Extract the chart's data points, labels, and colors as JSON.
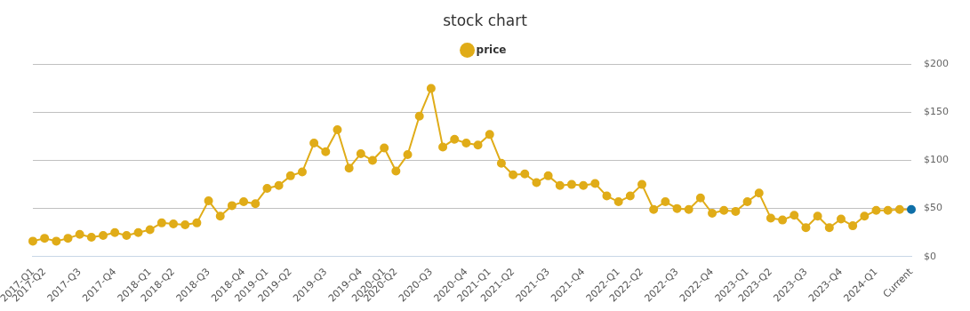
{
  "chart_data": {
    "type": "line",
    "title": "stock chart",
    "categories": [
      "2017-Q1",
      "2017-Q2",
      null,
      null,
      "2017-Q3",
      null,
      null,
      "2017-Q4",
      null,
      null,
      "2018-Q1",
      null,
      "2018-Q2",
      null,
      null,
      "2018-Q3",
      null,
      null,
      "2018-Q4",
      null,
      "2019-Q1",
      null,
      "2019-Q2",
      null,
      null,
      "2019-Q3",
      null,
      null,
      "2019-Q4",
      null,
      "2020-Q1",
      "2020-Q2",
      null,
      null,
      "2020-Q3",
      null,
      null,
      "2020-Q4",
      null,
      "2021-Q1",
      null,
      "2021-Q2",
      null,
      null,
      "2021-Q3",
      null,
      null,
      "2021-Q4",
      null,
      null,
      "2022-Q1",
      null,
      "2022-Q2",
      null,
      null,
      "2022-Q3",
      null,
      null,
      "2022-Q4",
      null,
      null,
      "2023-Q1",
      null,
      "2023-Q2",
      null,
      null,
      "2023-Q3",
      null,
      null,
      "2023-Q4",
      null,
      null,
      "2024-Q1",
      null,
      null,
      "Current"
    ],
    "series": [
      {
        "name": "price",
        "color": "#e0ac18",
        "colors": [
          "#e0ac18",
          "#e0ac18",
          "#e0ac18",
          "#e0ac18",
          "#e0ac18",
          "#e0ac18",
          "#e0ac18",
          "#e0ac18",
          "#e0ac18",
          "#e0ac18",
          "#e0ac18",
          "#e0ac18",
          "#e0ac18",
          "#e0ac18",
          "#e0ac18",
          "#e0ac18",
          "#e0ac18",
          "#e0ac18",
          "#e0ac18",
          "#e0ac18",
          "#e0ac18",
          "#e0ac18",
          "#e0ac18",
          "#e0ac18",
          "#e0ac18",
          "#e0ac18",
          "#e0ac18",
          "#e0ac18",
          "#e0ac18",
          "#e0ac18",
          "#e0ac18",
          "#e0ac18",
          "#e0ac18",
          "#e0ac18",
          "#e0ac18",
          "#e0ac18",
          "#e0ac18",
          "#e0ac18",
          "#e0ac18",
          "#e0ac18",
          "#e0ac18",
          "#e0ac18",
          "#e0ac18",
          "#e0ac18",
          "#e0ac18",
          "#e0ac18",
          "#e0ac18",
          "#e0ac18",
          "#e0ac18",
          "#e0ac18",
          "#e0ac18",
          "#e0ac18",
          "#e0ac18",
          "#e0ac18",
          "#e0ac18",
          "#e0ac18",
          "#e0ac18",
          "#e0ac18",
          "#e0ac18",
          "#e0ac18",
          "#e0ac18",
          "#e0ac18",
          "#e0ac18",
          "#e0ac18",
          "#e0ac18",
          "#e0ac18",
          "#e0ac18",
          "#e0ac18",
          "#e0ac18",
          "#e0ac18",
          "#e0ac18",
          "#e0ac18",
          "#e0ac18",
          "#e0ac18",
          "#e0ac18",
          "#0f6fa8"
        ],
        "values": [
          16,
          19,
          16,
          19,
          23,
          20,
          22,
          25,
          22,
          25,
          28,
          35,
          34,
          33,
          35,
          58,
          42,
          53,
          57,
          55,
          71,
          74,
          84,
          88,
          118,
          109,
          132,
          92,
          107,
          100,
          113,
          89,
          106,
          146,
          175,
          114,
          122,
          118,
          116,
          127,
          97,
          85,
          86,
          77,
          84,
          74,
          75,
          74,
          76,
          63,
          57,
          63,
          75,
          49,
          57,
          50,
          49,
          61,
          45,
          48,
          47,
          57,
          66,
          40,
          38,
          43,
          30,
          42,
          30,
          39,
          32,
          42,
          48,
          48,
          49,
          49
        ]
      }
    ],
    "ylim": [
      0,
      200
    ],
    "yticks": [
      {
        "value": 0,
        "label": "$0"
      },
      {
        "value": 50,
        "label": "$50"
      },
      {
        "value": 100,
        "label": "$100"
      },
      {
        "value": 150,
        "label": "$150"
      },
      {
        "value": 200,
        "label": "$200"
      }
    ],
    "grid": "y",
    "legend": "top",
    "marker": "circle",
    "line_style": "solid"
  }
}
